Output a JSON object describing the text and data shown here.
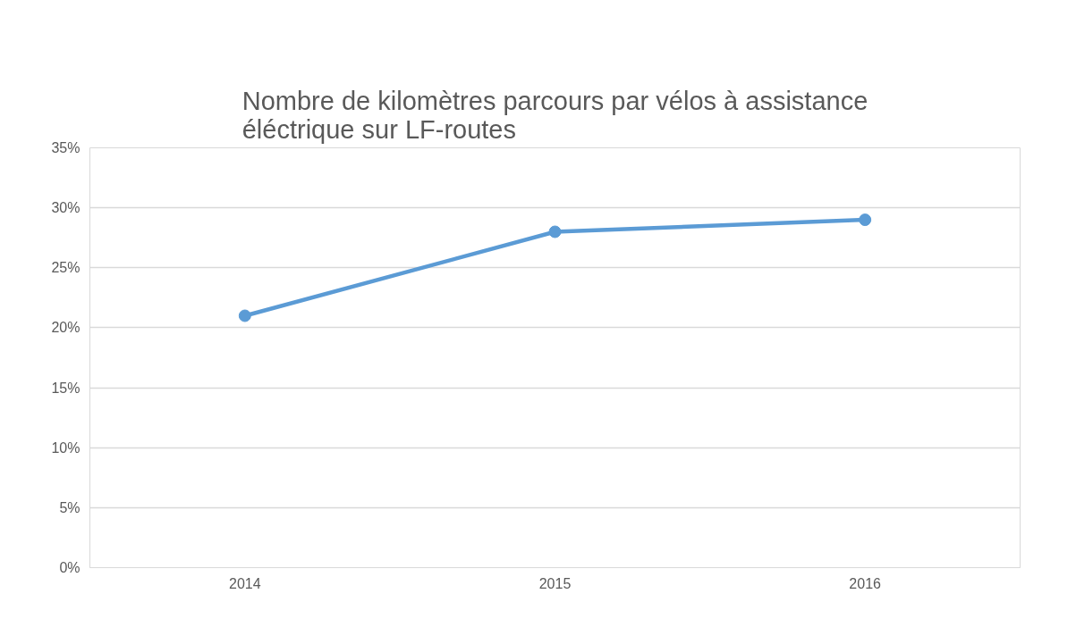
{
  "chart_data": {
    "type": "line",
    "title": "Nombre de kilomètres parcours par vélos à assistance éléctrique sur LF-routes",
    "categories": [
      "2014",
      "2015",
      "2016"
    ],
    "series": [
      {
        "color": "#5b9bd5",
        "values": [
          21,
          28,
          29
        ]
      }
    ],
    "ylim": [
      0,
      35
    ],
    "yticks": [
      {
        "value": 0,
        "label": "0%"
      },
      {
        "value": 5,
        "label": "5%"
      },
      {
        "value": 10,
        "label": "10%"
      },
      {
        "value": 15,
        "label": "15%"
      },
      {
        "value": 20,
        "label": "20%"
      },
      {
        "value": 25,
        "label": "25%"
      },
      {
        "value": 30,
        "label": "30%"
      },
      {
        "value": 35,
        "label": "35%"
      }
    ],
    "grid": "y",
    "marker": "circle",
    "line_style": "solid"
  }
}
